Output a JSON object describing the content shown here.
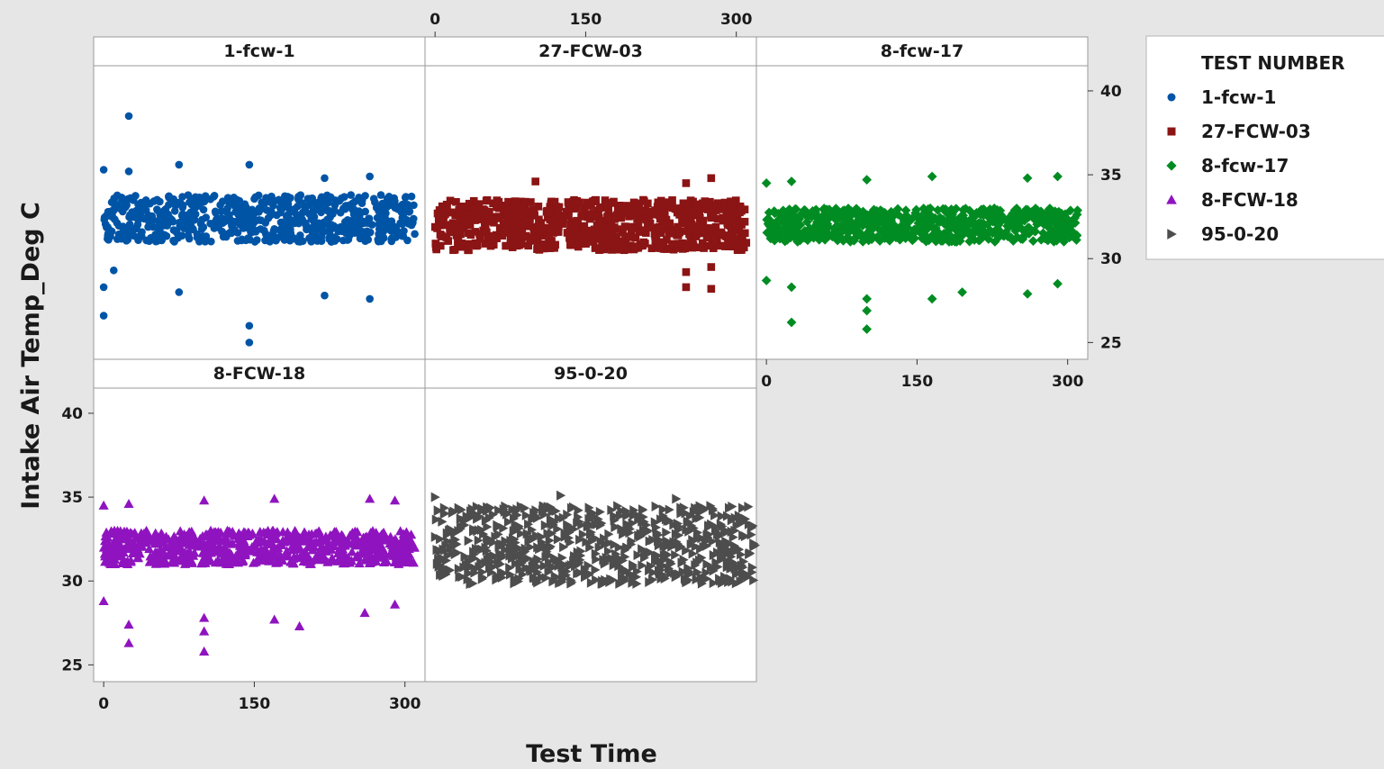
{
  "chart_data": {
    "type": "scatter",
    "title": "",
    "xlabel": "Test Time",
    "ylabel": "Intake Air Temp_Deg C",
    "xlim": [
      -10,
      320
    ],
    "ylim": [
      24,
      41.5
    ],
    "xticks": [
      0,
      150,
      300
    ],
    "yticks": [
      25,
      30,
      35,
      40
    ],
    "grid": false,
    "legend": {
      "title": "TEST NUMBER",
      "position": "right",
      "entries": [
        "1-fcw-1",
        "27-FCW-03",
        "8-fcw-17",
        "8-FCW-18",
        "95-0-20"
      ]
    },
    "series": [
      {
        "name": "1-fcw-1",
        "marker": "circle",
        "color": "#0054a6",
        "x_range": [
          0,
          310
        ],
        "band": [
          31,
          33.8
        ],
        "points": [
          {
            "x": 25,
            "y": 38.5
          },
          {
            "x": 75,
            "y": 35.6
          },
          {
            "x": 145,
            "y": 35.6
          },
          {
            "x": 0,
            "y": 35.3
          },
          {
            "x": 25,
            "y": 35.2
          },
          {
            "x": 0,
            "y": 28.3
          },
          {
            "x": 0,
            "y": 26.6
          },
          {
            "x": 145,
            "y": 25.0
          },
          {
            "x": 145,
            "y": 26.0
          },
          {
            "x": 75,
            "y": 28.0
          },
          {
            "x": 220,
            "y": 27.8
          },
          {
            "x": 265,
            "y": 27.6
          },
          {
            "x": 220,
            "y": 34.8
          },
          {
            "x": 265,
            "y": 34.9
          },
          {
            "x": 10,
            "y": 29.3
          }
        ]
      },
      {
        "name": "27-FCW-03",
        "marker": "square",
        "color": "#8b1414",
        "x_range": [
          0,
          310
        ],
        "band": [
          30.5,
          33.5
        ],
        "points": [
          {
            "x": 100,
            "y": 34.6
          },
          {
            "x": 250,
            "y": 34.5
          },
          {
            "x": 275,
            "y": 34.8
          },
          {
            "x": 250,
            "y": 28.3
          },
          {
            "x": 275,
            "y": 28.2
          },
          {
            "x": 250,
            "y": 29.2
          },
          {
            "x": 275,
            "y": 29.5
          }
        ]
      },
      {
        "name": "8-fcw-17",
        "marker": "diamond",
        "color": "#008c22",
        "x_range": [
          0,
          310
        ],
        "band": [
          31,
          33
        ],
        "points": [
          {
            "x": 0,
            "y": 28.7
          },
          {
            "x": 25,
            "y": 26.2
          },
          {
            "x": 25,
            "y": 28.3
          },
          {
            "x": 100,
            "y": 25.8
          },
          {
            "x": 100,
            "y": 27.6
          },
          {
            "x": 100,
            "y": 26.9
          },
          {
            "x": 165,
            "y": 27.6
          },
          {
            "x": 195,
            "y": 28.0
          },
          {
            "x": 260,
            "y": 27.9
          },
          {
            "x": 290,
            "y": 28.5
          },
          {
            "x": 0,
            "y": 34.5
          },
          {
            "x": 25,
            "y": 34.6
          },
          {
            "x": 100,
            "y": 34.7
          },
          {
            "x": 165,
            "y": 34.9
          },
          {
            "x": 260,
            "y": 34.8
          },
          {
            "x": 290,
            "y": 34.9
          }
        ]
      },
      {
        "name": "8-FCW-18",
        "marker": "triangle",
        "color": "#8f14bf",
        "x_range": [
          0,
          310
        ],
        "band": [
          31,
          33
        ],
        "points": [
          {
            "x": 0,
            "y": 28.8
          },
          {
            "x": 25,
            "y": 26.3
          },
          {
            "x": 25,
            "y": 27.4
          },
          {
            "x": 100,
            "y": 25.8
          },
          {
            "x": 100,
            "y": 27.0
          },
          {
            "x": 100,
            "y": 27.8
          },
          {
            "x": 170,
            "y": 27.7
          },
          {
            "x": 195,
            "y": 27.3
          },
          {
            "x": 260,
            "y": 28.1
          },
          {
            "x": 290,
            "y": 28.6
          },
          {
            "x": 0,
            "y": 34.5
          },
          {
            "x": 25,
            "y": 34.6
          },
          {
            "x": 100,
            "y": 34.8
          },
          {
            "x": 170,
            "y": 34.9
          },
          {
            "x": 265,
            "y": 34.9
          },
          {
            "x": 290,
            "y": 34.8
          }
        ]
      },
      {
        "name": "95-0-20",
        "marker": "right-triangle",
        "color": "#4d4d4d",
        "x_range": [
          0,
          320
        ],
        "band": [
          29.8,
          34.5
        ],
        "points": [
          {
            "x": 0,
            "y": 35.0
          },
          {
            "x": 125,
            "y": 35.1
          },
          {
            "x": 240,
            "y": 34.9
          }
        ]
      }
    ]
  }
}
